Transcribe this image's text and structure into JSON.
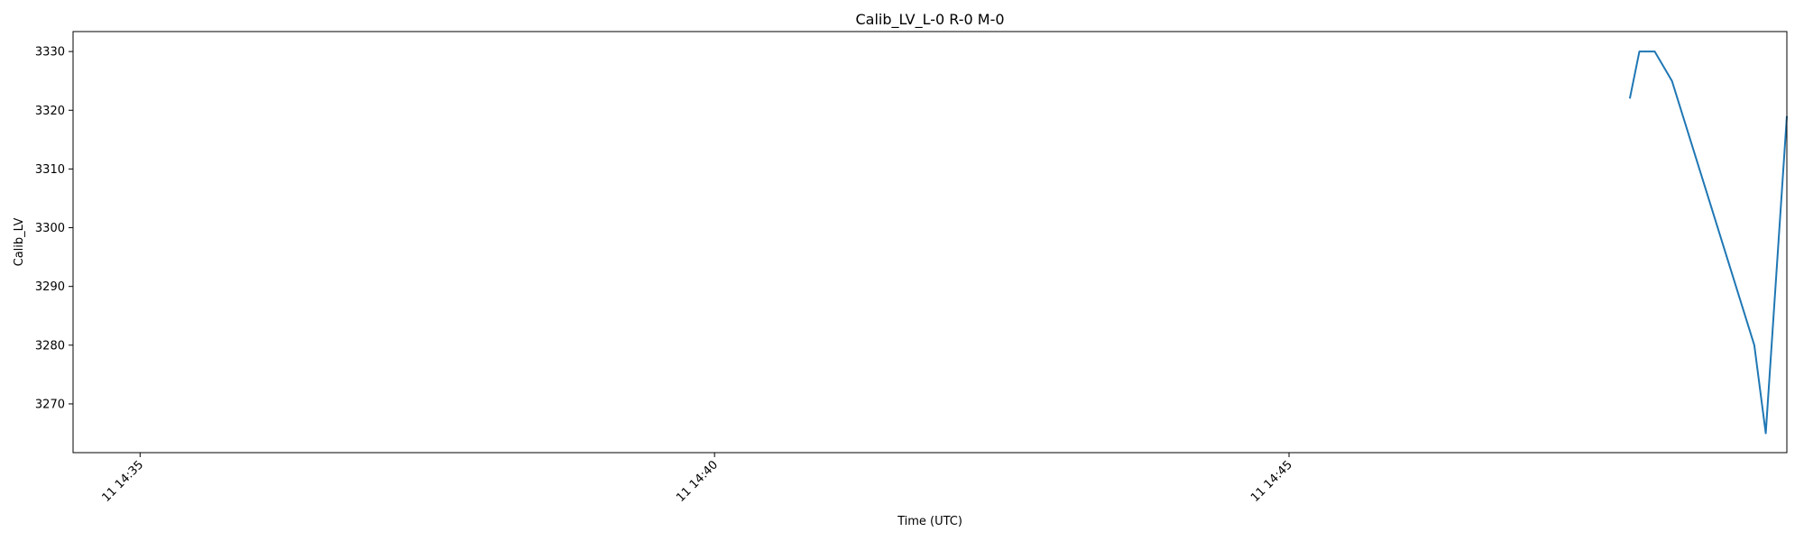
{
  "chart_data": {
    "type": "line",
    "title": "Calib_LV_L-0 R-0 M-0",
    "xlabel": "Time (UTC)",
    "ylabel": "Calib_LV",
    "x_ticks": [
      "11 14:35",
      "11 14:40",
      "11 14:45"
    ],
    "y_ticks": [
      3270,
      3280,
      3290,
      3300,
      3310,
      3320,
      3330
    ],
    "xlim": [
      "11 14:34:25",
      "11 14:49:20"
    ],
    "ylim": [
      3261.7,
      3333.4
    ],
    "grid": false,
    "colors": {
      "line": "#1f77b4",
      "axes": "#000000"
    },
    "series": [
      {
        "x": [
          "11 14:47:58",
          "11 14:48:03",
          "11 14:48:11",
          "11 14:48:20",
          "11 14:49:03",
          "11 14:49:09",
          "11 14:49:20"
        ],
        "values": [
          3322,
          3330,
          3330,
          3325,
          3280,
          3265,
          3319
        ]
      }
    ]
  }
}
